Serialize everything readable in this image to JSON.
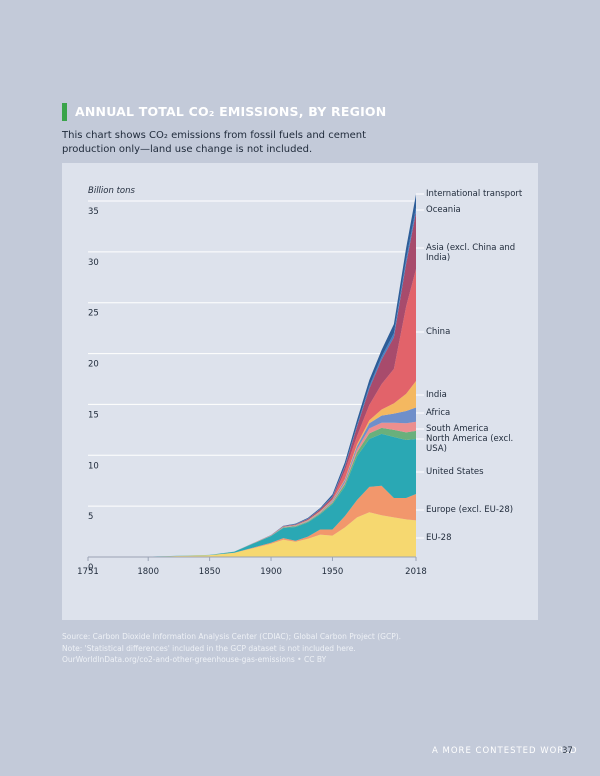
{
  "header": {
    "title": "ANNUAL TOTAL CO₂ EMISSIONS, BY REGION",
    "subtitle": "This chart shows CO₂ emissions from fossil fuels and cement production only—land use change is not included."
  },
  "chart_data": {
    "type": "stacked-area",
    "y_label": "Billion tons",
    "x": [
      1751,
      1800,
      1850,
      1870,
      1900,
      1910,
      1920,
      1930,
      1940,
      1950,
      1960,
      1970,
      1980,
      1990,
      2000,
      2010,
      2018
    ],
    "xlim": [
      1751,
      2018
    ],
    "xticks": [
      1751,
      1800,
      1850,
      1900,
      1950,
      2018
    ],
    "ylim": [
      0,
      35
    ],
    "yticks": [
      0,
      5,
      10,
      15,
      20,
      25,
      30,
      35
    ],
    "grid": true,
    "series": [
      {
        "name": "EU-28",
        "color": "#f6d870",
        "values": [
          0.01,
          0.03,
          0.18,
          0.4,
          1.3,
          1.7,
          1.5,
          1.8,
          2.2,
          2.1,
          2.9,
          3.9,
          4.4,
          4.1,
          3.9,
          3.7,
          3.6
        ]
      },
      {
        "name": "Europe (excl. EU-28)",
        "color": "#f2976c",
        "values": [
          0,
          0,
          0.01,
          0.02,
          0.1,
          0.15,
          0.1,
          0.2,
          0.5,
          0.6,
          1.1,
          1.7,
          2.5,
          2.9,
          1.9,
          2.1,
          2.6
        ]
      },
      {
        "name": "United States",
        "color": "#2aa8b4",
        "values": [
          0,
          0.001,
          0.02,
          0.1,
          0.66,
          1.0,
          1.35,
          1.4,
          1.5,
          2.5,
          2.9,
          4.3,
          4.7,
          5.1,
          6.0,
          5.7,
          5.4
        ]
      },
      {
        "name": "North America (excl. USA)",
        "color": "#69b07c",
        "values": [
          0,
          0,
          0,
          0.005,
          0.03,
          0.06,
          0.07,
          0.08,
          0.1,
          0.15,
          0.25,
          0.4,
          0.55,
          0.6,
          0.7,
          0.75,
          0.8
        ]
      },
      {
        "name": "South America",
        "color": "#ec8f8f",
        "values": [
          0,
          0,
          0,
          0,
          0.01,
          0.02,
          0.03,
          0.04,
          0.05,
          0.1,
          0.18,
          0.3,
          0.5,
          0.5,
          0.7,
          0.9,
          0.9
        ]
      },
      {
        "name": "Africa",
        "color": "#6f8fca",
        "values": [
          0,
          0,
          0,
          0,
          0.01,
          0.02,
          0.03,
          0.04,
          0.06,
          0.1,
          0.2,
          0.3,
          0.5,
          0.7,
          0.9,
          1.2,
          1.4
        ]
      },
      {
        "name": "India",
        "color": "#f4b860",
        "values": [
          0,
          0,
          0,
          0,
          0.02,
          0.03,
          0.04,
          0.05,
          0.07,
          0.07,
          0.1,
          0.2,
          0.3,
          0.6,
          1.0,
          1.7,
          2.6
        ]
      },
      {
        "name": "China",
        "color": "#e2636a",
        "values": [
          0,
          0,
          0,
          0,
          0,
          0.01,
          0.02,
          0.03,
          0.05,
          0.08,
          0.8,
          0.8,
          1.5,
          2.5,
          3.4,
          8.6,
          11.0
        ]
      },
      {
        "name": "Asia (excl. China and India)",
        "color": "#a84b6c",
        "values": [
          0,
          0,
          0,
          0,
          0.02,
          0.04,
          0.06,
          0.1,
          0.15,
          0.2,
          0.4,
          0.9,
          1.6,
          2.4,
          3.1,
          4.2,
          5.6
        ]
      },
      {
        "name": "Oceania",
        "color": "#4a80c2",
        "values": [
          0,
          0,
          0,
          0.005,
          0.01,
          0.02,
          0.03,
          0.03,
          0.04,
          0.06,
          0.1,
          0.17,
          0.25,
          0.3,
          0.4,
          0.45,
          0.45
        ]
      },
      {
        "name": "International transport",
        "color": "#2d5d98",
        "values": [
          0,
          0,
          0,
          0,
          0,
          0.02,
          0.05,
          0.08,
          0.1,
          0.2,
          0.35,
          0.5,
          0.6,
          0.65,
          0.9,
          1.1,
          1.3
        ]
      }
    ]
  },
  "sources": [
    "Source: Carbon Dioxide Information Analysis Center (CDIAC); Global Carbon Project (GCP).",
    "Note: 'Statistical differences' included in the GCP dataset is not included here.",
    "OurWorldInData.org/co2-and-other-greenhouse-gas-emissions • CC BY"
  ],
  "footer": {
    "text": "A MORE CONTESTED WORLD",
    "page": "37"
  }
}
